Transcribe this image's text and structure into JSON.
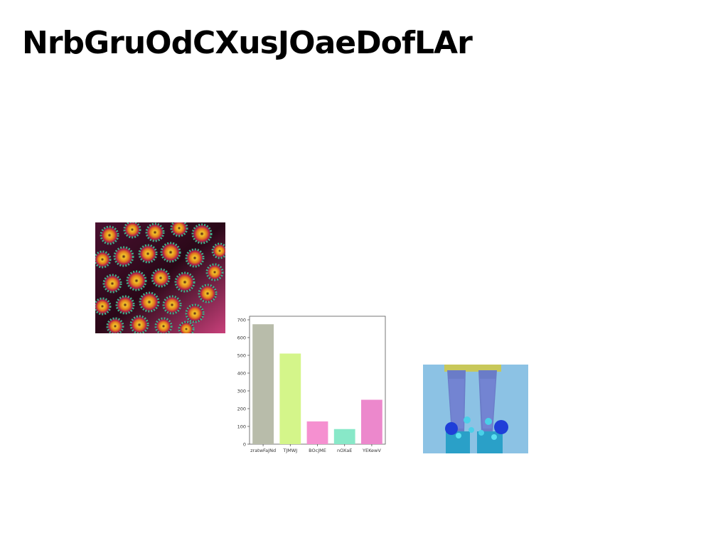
{
  "page": {
    "title": "NrbGruOdCXusJOaeDofLAr"
  },
  "images": {
    "coral": "coral-polyps-photo",
    "legs": "legs-with-blue-flowers-photo"
  },
  "chart_data": {
    "type": "bar",
    "categories": [
      "zratwFaJNd",
      "TJMWJ",
      "BOcJME",
      "nOXaE",
      "YEKewV"
    ],
    "values": [
      675,
      510,
      128,
      85,
      250
    ],
    "colors": [
      "#b8bcaa",
      "#d4f58a",
      "#f590d0",
      "#88e8c8",
      "#ec88cc"
    ],
    "ylim": [
      0,
      720
    ],
    "yticks": [
      0,
      100,
      200,
      300,
      400,
      500,
      600,
      700
    ],
    "xlabel": "",
    "ylabel": "",
    "grid": false
  }
}
